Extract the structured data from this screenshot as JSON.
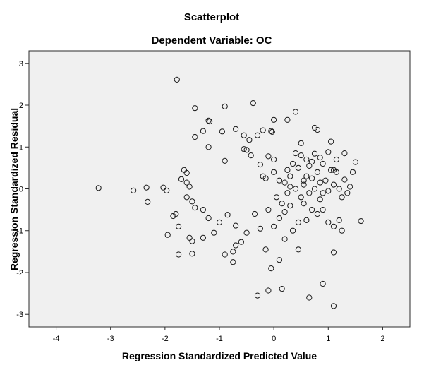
{
  "chart_data": {
    "type": "scatter",
    "title": "Scatterplot",
    "subtitle": "Dependent Variable: OC",
    "xlabel": "Regression Standardized Predicted Value",
    "ylabel": "Regression Standardized Residual",
    "xlim": [
      -4.5,
      2.5
    ],
    "ylim": [
      -3.3,
      3.3
    ],
    "xticks": [
      -4,
      -3,
      -2,
      -1,
      0,
      1,
      2
    ],
    "yticks": [
      -3,
      -2,
      -1,
      0,
      1,
      2,
      3
    ],
    "xtick_labels": [
      "-4",
      "-3",
      "-2",
      "-1",
      "0",
      "1",
      "2"
    ],
    "ytick_labels": [
      "-3",
      "-2",
      "-1",
      "0",
      "1",
      "2",
      "3"
    ],
    "grid": false,
    "plot_background": "#f0f0f0",
    "marker_color": "#1a1a1a",
    "points": [
      [
        -3.22,
        0.02
      ],
      [
        -2.58,
        -0.04
      ],
      [
        -2.34,
        0.03
      ],
      [
        -2.32,
        -0.31
      ],
      [
        -2.03,
        0.03
      ],
      [
        -1.97,
        -0.04
      ],
      [
        -1.78,
        2.61
      ],
      [
        -1.45,
        1.93
      ],
      [
        -0.9,
        1.97
      ],
      [
        -0.38,
        2.05
      ],
      [
        -0.2,
        1.4
      ],
      [
        -1.2,
        1.63
      ],
      [
        -1.18,
        1.61
      ],
      [
        -1.45,
        1.24
      ],
      [
        -1.2,
        1.0
      ],
      [
        -1.3,
        1.38
      ],
      [
        -0.95,
        1.37
      ],
      [
        -0.7,
        1.43
      ],
      [
        -0.55,
        1.28
      ],
      [
        -0.45,
        1.17
      ],
      [
        -0.3,
        1.28
      ],
      [
        -0.55,
        0.95
      ],
      [
        -0.5,
        0.93
      ],
      [
        -0.42,
        0.8
      ],
      [
        -0.9,
        0.67
      ],
      [
        -0.05,
        1.38
      ],
      [
        -0.03,
        1.36
      ],
      [
        0.0,
        1.65
      ],
      [
        0.25,
        1.65
      ],
      [
        0.4,
        1.84
      ],
      [
        0.5,
        1.09
      ],
      [
        0.75,
        1.46
      ],
      [
        0.8,
        1.41
      ],
      [
        1.05,
        1.13
      ],
      [
        -0.1,
        0.78
      ],
      [
        0.0,
        0.7
      ],
      [
        0.4,
        0.85
      ],
      [
        0.5,
        0.8
      ],
      [
        0.6,
        0.7
      ],
      [
        0.7,
        0.65
      ],
      [
        0.75,
        0.84
      ],
      [
        0.85,
        0.75
      ],
      [
        0.9,
        0.6
      ],
      [
        1.0,
        0.88
      ],
      [
        1.1,
        0.45
      ],
      [
        1.15,
        0.7
      ],
      [
        1.3,
        0.85
      ],
      [
        1.45,
        0.4
      ],
      [
        1.5,
        0.64
      ],
      [
        -0.25,
        0.58
      ],
      [
        -0.2,
        0.3
      ],
      [
        -0.15,
        0.25
      ],
      [
        0.0,
        0.4
      ],
      [
        0.1,
        0.2
      ],
      [
        0.2,
        0.15
      ],
      [
        0.25,
        0.45
      ],
      [
        0.35,
        0.6
      ],
      [
        0.4,
        0.0
      ],
      [
        0.45,
        0.5
      ],
      [
        0.55,
        0.1
      ],
      [
        0.6,
        0.3
      ],
      [
        0.65,
        -0.1
      ],
      [
        0.7,
        0.25
      ],
      [
        0.75,
        0.0
      ],
      [
        0.8,
        0.4
      ],
      [
        0.85,
        0.15
      ],
      [
        0.9,
        -0.1
      ],
      [
        0.95,
        0.2
      ],
      [
        1.0,
        -0.05
      ],
      [
        1.05,
        0.45
      ],
      [
        1.1,
        0.1
      ],
      [
        1.15,
        0.4
      ],
      [
        1.2,
        0.0
      ],
      [
        1.25,
        -0.2
      ],
      [
        1.3,
        0.22
      ],
      [
        1.35,
        -0.1
      ],
      [
        -1.65,
        0.45
      ],
      [
        -1.6,
        0.38
      ],
      [
        -1.7,
        0.23
      ],
      [
        -1.6,
        0.15
      ],
      [
        -1.55,
        0.05
      ],
      [
        -1.8,
        -0.6
      ],
      [
        -1.75,
        -0.9
      ],
      [
        -1.85,
        -0.65
      ],
      [
        -1.6,
        -0.2
      ],
      [
        -1.5,
        -0.3
      ],
      [
        -1.45,
        -0.45
      ],
      [
        -1.3,
        -0.5
      ],
      [
        -1.2,
        -0.7
      ],
      [
        -1.1,
        -1.05
      ],
      [
        -1.0,
        -0.8
      ],
      [
        -0.85,
        -0.62
      ],
      [
        -0.7,
        -0.88
      ],
      [
        -1.95,
        -1.1
      ],
      [
        -1.55,
        -1.17
      ],
      [
        -1.5,
        -1.25
      ],
      [
        -1.3,
        -1.17
      ],
      [
        -1.75,
        -1.57
      ],
      [
        -1.5,
        -1.55
      ],
      [
        -0.9,
        -1.57
      ],
      [
        -0.7,
        -1.35
      ],
      [
        -0.75,
        -1.5
      ],
      [
        -0.6,
        -1.27
      ],
      [
        -0.5,
        -1.05
      ],
      [
        -0.35,
        -0.6
      ],
      [
        -0.25,
        -0.95
      ],
      [
        -0.1,
        -0.5
      ],
      [
        0.0,
        -0.9
      ],
      [
        0.1,
        -0.7
      ],
      [
        0.2,
        -0.55
      ],
      [
        0.3,
        -0.4
      ],
      [
        0.35,
        -1.0
      ],
      [
        0.45,
        -0.8
      ],
      [
        0.55,
        -0.35
      ],
      [
        0.6,
        -0.75
      ],
      [
        0.7,
        -0.5
      ],
      [
        0.8,
        -0.6
      ],
      [
        0.9,
        -0.5
      ],
      [
        1.0,
        -0.8
      ],
      [
        1.1,
        -0.9
      ],
      [
        1.2,
        -0.75
      ],
      [
        1.25,
        -1.0
      ],
      [
        0.2,
        -1.2
      ],
      [
        0.45,
        -1.45
      ],
      [
        -0.15,
        -1.45
      ],
      [
        -0.05,
        -1.9
      ],
      [
        0.1,
        -1.7
      ],
      [
        -0.3,
        -2.55
      ],
      [
        -0.1,
        -2.43
      ],
      [
        0.15,
        -2.39
      ],
      [
        0.65,
        -2.6
      ],
      [
        0.9,
        -2.27
      ],
      [
        1.1,
        -2.8
      ],
      [
        1.1,
        -1.52
      ],
      [
        -0.75,
        -1.75
      ],
      [
        1.6,
        -0.77
      ],
      [
        0.25,
        -0.1
      ],
      [
        0.3,
        0.3
      ],
      [
        0.5,
        -0.2
      ],
      [
        0.65,
        0.55
      ],
      [
        0.85,
        -0.25
      ],
      [
        1.4,
        0.05
      ],
      [
        0.05,
        -0.2
      ],
      [
        0.15,
        -0.35
      ],
      [
        0.3,
        0.05
      ],
      [
        0.55,
        0.2
      ]
    ]
  }
}
